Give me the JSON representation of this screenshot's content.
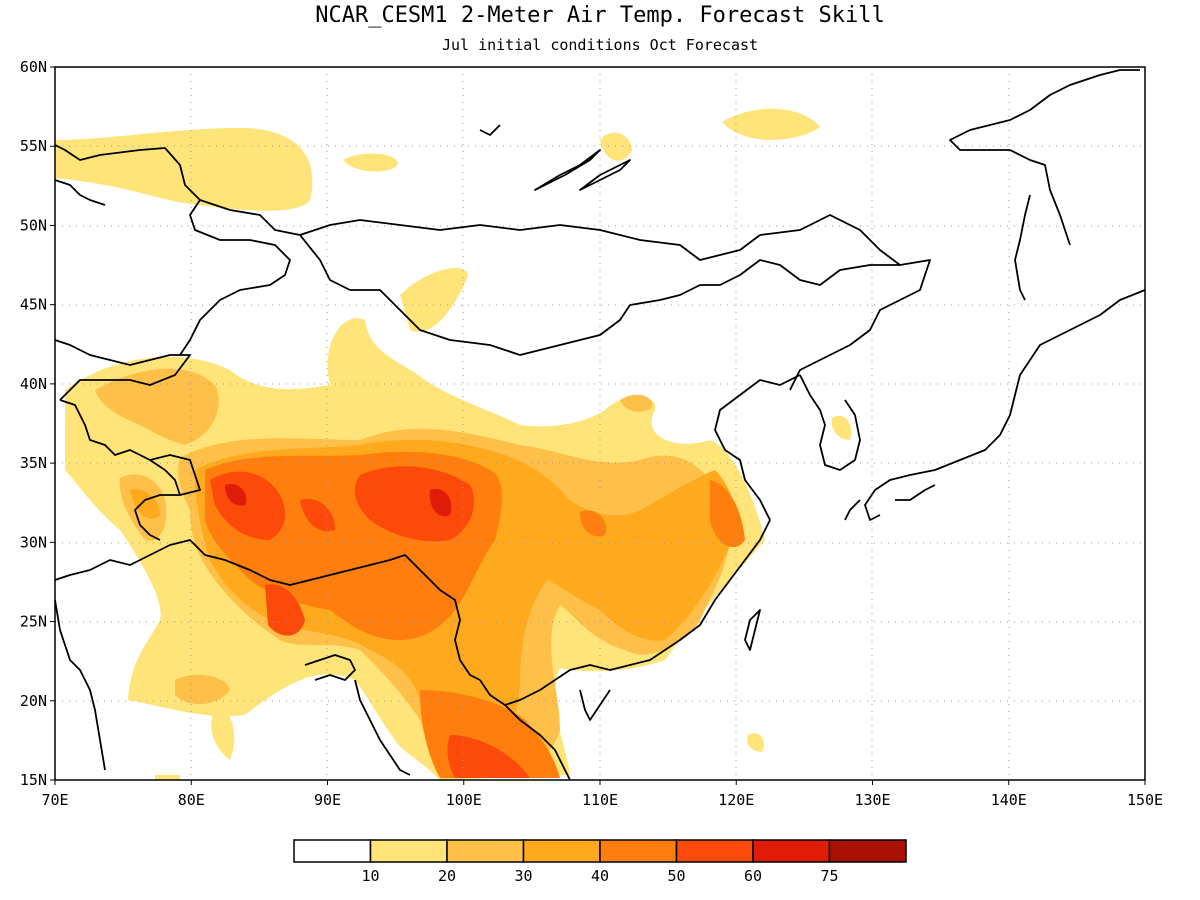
{
  "title": "NCAR_CESM1 2-Meter Air Temp. Forecast Skill",
  "subtitle": "Jul initial conditions  Oct Forecast",
  "lon_ticks": [
    "70E",
    "80E",
    "90E",
    "100E",
    "110E",
    "120E",
    "130E",
    "140E",
    "150E"
  ],
  "lat_ticks": [
    "60N",
    "55N",
    "50N",
    "45N",
    "40N",
    "35N",
    "30N",
    "25N",
    "20N",
    "15N"
  ],
  "lon_range": [
    70,
    150
  ],
  "lat_range": [
    15,
    60
  ],
  "colorbar": {
    "colors": [
      "#ffffff",
      "#ffe47a",
      "#ffc04a",
      "#ffa91e",
      "#ff7e0d",
      "#fb4a09",
      "#df1c08",
      "#a81104"
    ],
    "labels": [
      "10",
      "20",
      "30",
      "40",
      "50",
      "60",
      "75"
    ]
  }
}
